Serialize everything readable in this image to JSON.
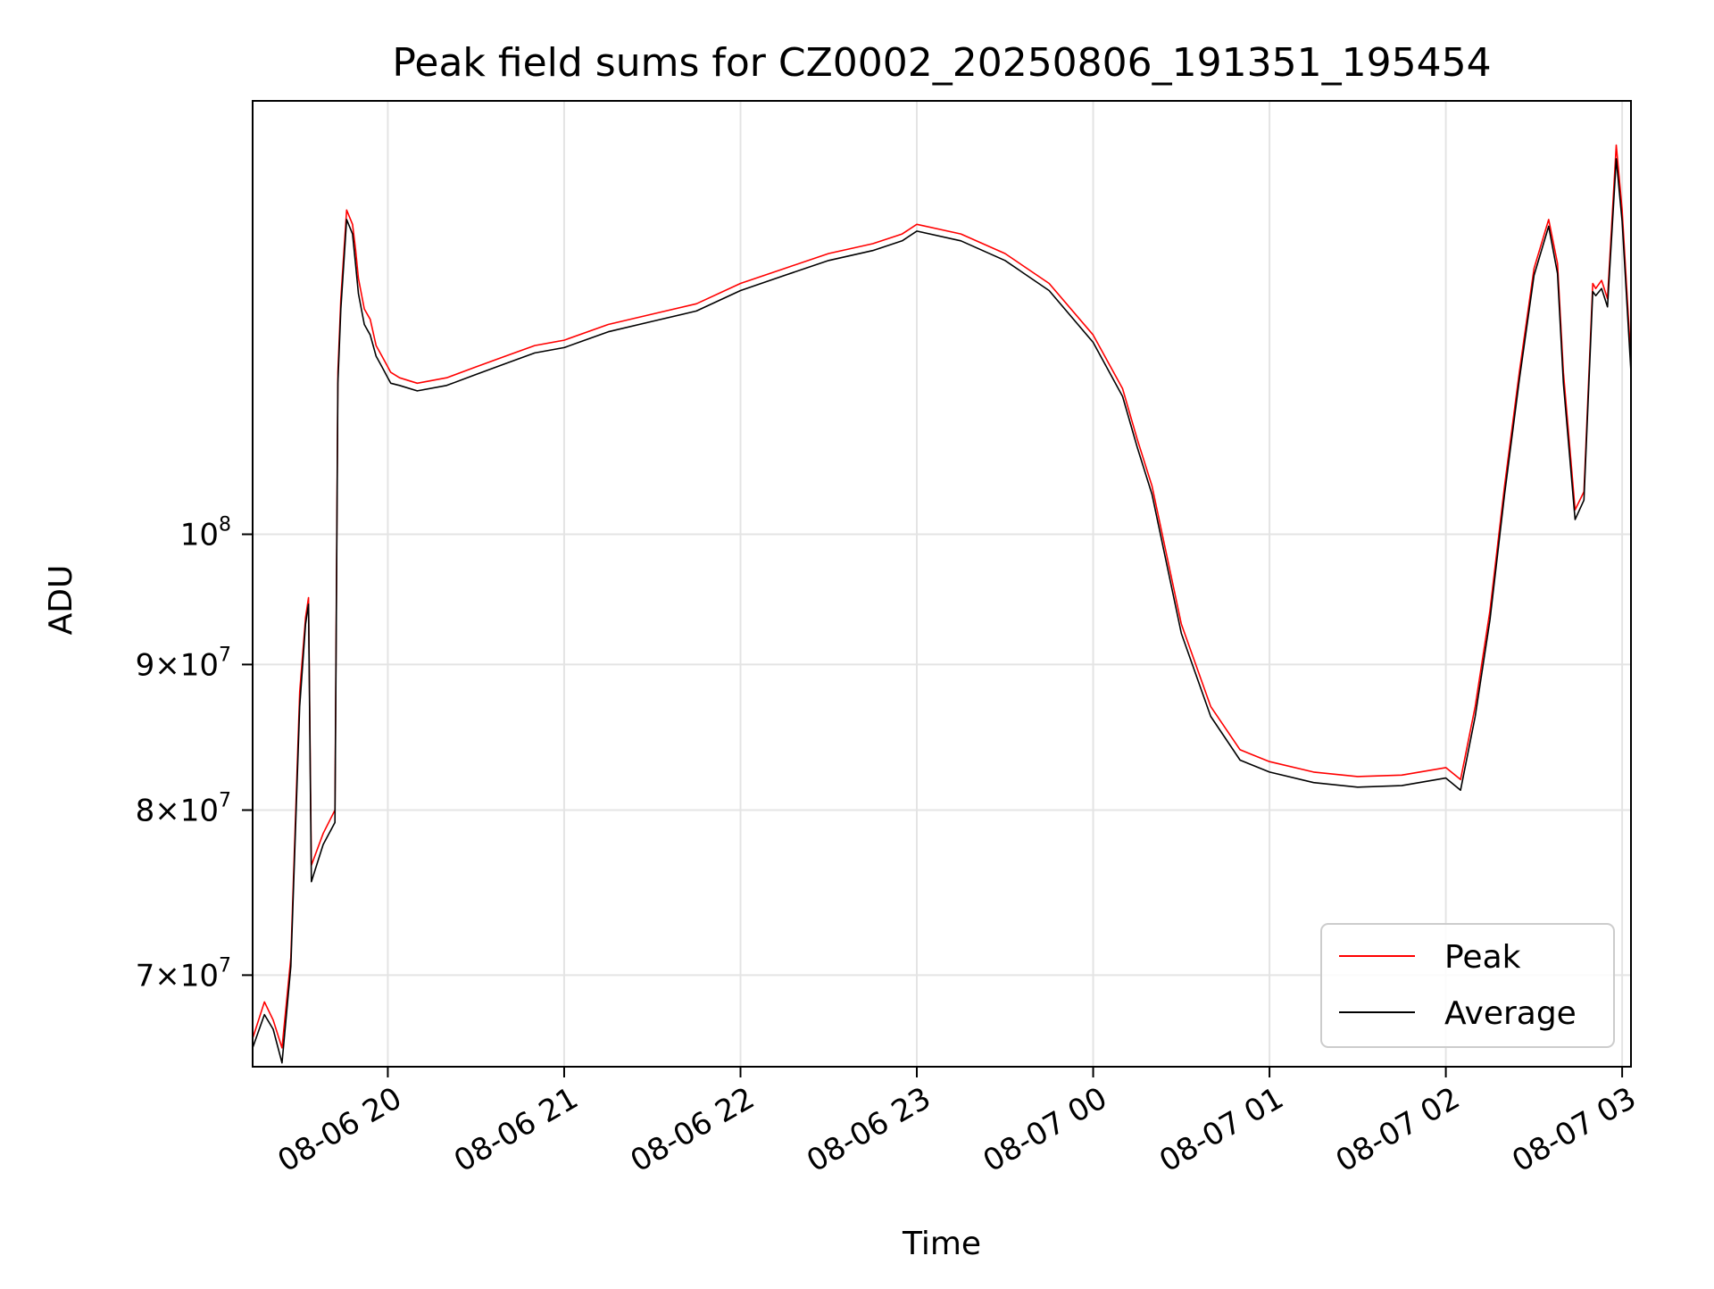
{
  "chart_data": {
    "type": "line",
    "title": "Peak field sums for CZ0002_20250806_191351_195454",
    "xlabel": "Time",
    "ylabel": "ADU",
    "xlim": [
      "2025-08-06 19:14",
      "2025-08-07 03:03"
    ],
    "ylim": [
      65000000,
      142000000
    ],
    "yscale": "log",
    "grid": true,
    "legend_position": "bottom-right",
    "x_ticks": [
      {
        "t": "2025-08-06 20:00",
        "label": "08-06 20"
      },
      {
        "t": "2025-08-06 21:00",
        "label": "08-06 21"
      },
      {
        "t": "2025-08-06 22:00",
        "label": "08-06 22"
      },
      {
        "t": "2025-08-06 23:00",
        "label": "08-06 23"
      },
      {
        "t": "2025-08-07 00:00",
        "label": "08-07 00"
      },
      {
        "t": "2025-08-07 01:00",
        "label": "08-07 01"
      },
      {
        "t": "2025-08-07 02:00",
        "label": "08-07 02"
      },
      {
        "t": "2025-08-07 03:00",
        "label": "08-07 03"
      }
    ],
    "y_ticks": [
      {
        "value": 70000000,
        "coef": "7",
        "exp": "7",
        "kind": "mult"
      },
      {
        "value": 80000000,
        "coef": "8",
        "exp": "7",
        "kind": "mult"
      },
      {
        "value": 90000000,
        "coef": "9",
        "exp": "7",
        "kind": "mult"
      },
      {
        "value": 100000000,
        "coef": "",
        "exp": "8",
        "kind": "pow"
      }
    ],
    "series": [
      {
        "name": "Peak",
        "color": "#ff0000",
        "x": [
          "2025-08-06 19:14",
          "2025-08-06 19:18",
          "2025-08-06 19:21",
          "2025-08-06 19:24",
          "2025-08-06 19:27",
          "2025-08-06 19:30",
          "2025-08-06 19:32",
          "2025-08-06 19:33",
          "2025-08-06 19:34",
          "2025-08-06 19:38",
          "2025-08-06 19:42",
          "2025-08-06 19:43",
          "2025-08-06 19:44",
          "2025-08-06 19:46",
          "2025-08-06 19:48",
          "2025-08-06 19:49",
          "2025-08-06 19:50",
          "2025-08-06 19:52",
          "2025-08-06 19:54",
          "2025-08-06 19:56",
          "2025-08-06 19:58",
          "2025-08-06 20:00",
          "2025-08-06 20:01",
          "2025-08-06 20:04",
          "2025-08-06 20:10",
          "2025-08-06 20:20",
          "2025-08-06 20:30",
          "2025-08-06 20:40",
          "2025-08-06 20:50",
          "2025-08-06 21:00",
          "2025-08-06 21:15",
          "2025-08-06 21:30",
          "2025-08-06 21:45",
          "2025-08-06 22:00",
          "2025-08-06 22:15",
          "2025-08-06 22:30",
          "2025-08-06 22:45",
          "2025-08-06 22:55",
          "2025-08-06 23:00",
          "2025-08-06 23:15",
          "2025-08-06 23:30",
          "2025-08-06 23:45",
          "2025-08-07 00:00",
          "2025-08-07 00:10",
          "2025-08-07 00:15",
          "2025-08-07 00:20",
          "2025-08-07 00:30",
          "2025-08-07 00:40",
          "2025-08-07 00:50",
          "2025-08-07 01:00",
          "2025-08-07 01:15",
          "2025-08-07 01:30",
          "2025-08-07 01:45",
          "2025-08-07 02:00",
          "2025-08-07 02:05",
          "2025-08-07 02:10",
          "2025-08-07 02:15",
          "2025-08-07 02:20",
          "2025-08-07 02:25",
          "2025-08-07 02:30",
          "2025-08-07 02:35",
          "2025-08-07 02:38",
          "2025-08-07 02:40",
          "2025-08-07 02:44",
          "2025-08-07 02:47",
          "2025-08-07 02:50",
          "2025-08-07 02:51",
          "2025-08-07 02:53",
          "2025-08-07 02:55",
          "2025-08-07 02:58",
          "2025-08-07 03:00",
          "2025-08-07 03:03"
        ],
        "y": [
          66500000,
          68500000,
          67500000,
          66000000,
          71000000,
          88000000,
          93500000,
          95000000,
          76500000,
          78500000,
          80000000,
          114000000,
          121000000,
          130000000,
          128500000,
          126000000,
          123000000,
          120000000,
          119000000,
          116500000,
          115500000,
          114500000,
          114000000,
          113500000,
          113000000,
          113500000,
          114500000,
          115500000,
          116500000,
          117000000,
          118500000,
          119500000,
          120500000,
          122500000,
          124000000,
          125500000,
          126500000,
          127500000,
          128500000,
          127500000,
          125500000,
          122500000,
          117500000,
          112500000,
          108000000,
          104000000,
          93000000,
          87000000,
          84000000,
          83200000,
          82500000,
          82200000,
          82300000,
          82800000,
          82000000,
          87000000,
          94000000,
          104000000,
          114000000,
          124000000,
          129000000,
          124500000,
          114000000,
          102000000,
          103500000,
          122500000,
          122000000,
          122800000,
          121000000,
          137000000,
          130000000,
          115000000
        ]
      },
      {
        "name": "Average",
        "color": "#000000",
        "x": [
          "2025-08-06 19:14",
          "2025-08-06 19:18",
          "2025-08-06 19:21",
          "2025-08-06 19:24",
          "2025-08-06 19:27",
          "2025-08-06 19:30",
          "2025-08-06 19:32",
          "2025-08-06 19:33",
          "2025-08-06 19:34",
          "2025-08-06 19:38",
          "2025-08-06 19:42",
          "2025-08-06 19:43",
          "2025-08-06 19:44",
          "2025-08-06 19:46",
          "2025-08-06 19:48",
          "2025-08-06 19:49",
          "2025-08-06 19:50",
          "2025-08-06 19:52",
          "2025-08-06 19:54",
          "2025-08-06 19:56",
          "2025-08-06 19:58",
          "2025-08-06 20:00",
          "2025-08-06 20:01",
          "2025-08-06 20:04",
          "2025-08-06 20:10",
          "2025-08-06 20:20",
          "2025-08-06 20:30",
          "2025-08-06 20:40",
          "2025-08-06 20:50",
          "2025-08-06 21:00",
          "2025-08-06 21:15",
          "2025-08-06 21:30",
          "2025-08-06 21:45",
          "2025-08-06 22:00",
          "2025-08-06 22:15",
          "2025-08-06 22:30",
          "2025-08-06 22:45",
          "2025-08-06 22:55",
          "2025-08-06 23:00",
          "2025-08-06 23:15",
          "2025-08-06 23:30",
          "2025-08-06 23:45",
          "2025-08-07 00:00",
          "2025-08-07 00:10",
          "2025-08-07 00:15",
          "2025-08-07 00:20",
          "2025-08-07 00:30",
          "2025-08-07 00:40",
          "2025-08-07 00:50",
          "2025-08-07 01:00",
          "2025-08-07 01:15",
          "2025-08-07 01:30",
          "2025-08-07 01:45",
          "2025-08-07 02:00",
          "2025-08-07 02:05",
          "2025-08-07 02:10",
          "2025-08-07 02:15",
          "2025-08-07 02:20",
          "2025-08-07 02:25",
          "2025-08-07 02:30",
          "2025-08-07 02:35",
          "2025-08-07 02:38",
          "2025-08-07 02:40",
          "2025-08-07 02:44",
          "2025-08-07 02:47",
          "2025-08-07 02:50",
          "2025-08-07 02:51",
          "2025-08-07 02:53",
          "2025-08-07 02:55",
          "2025-08-07 02:58",
          "2025-08-07 03:00",
          "2025-08-07 03:03"
        ],
        "y": [
          66000000,
          67800000,
          67000000,
          65200000,
          70500000,
          87000000,
          93000000,
          94500000,
          75500000,
          77800000,
          79200000,
          113000000,
          120000000,
          129000000,
          127500000,
          124500000,
          121500000,
          118500000,
          117500000,
          115500000,
          114500000,
          113500000,
          113000000,
          112800000,
          112300000,
          112800000,
          113800000,
          114800000,
          115800000,
          116300000,
          117800000,
          118800000,
          119800000,
          121800000,
          123300000,
          124800000,
          125800000,
          126800000,
          127800000,
          126800000,
          124800000,
          121800000,
          116800000,
          111800000,
          107300000,
          103300000,
          92300000,
          86300000,
          83300000,
          82500000,
          81800000,
          81500000,
          81600000,
          82100000,
          81300000,
          86300000,
          93300000,
          103300000,
          113300000,
          123300000,
          128300000,
          123500000,
          113000000,
          101200000,
          102800000,
          121700000,
          121300000,
          122000000,
          120200000,
          135500000,
          128800000,
          114000000
        ]
      }
    ]
  }
}
